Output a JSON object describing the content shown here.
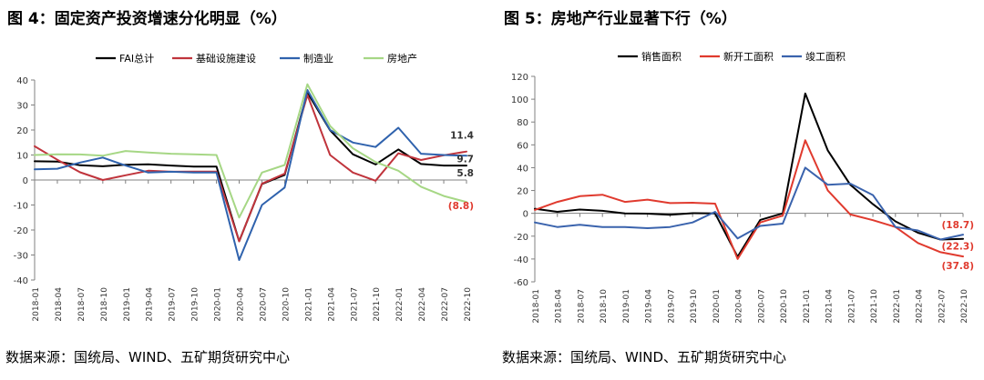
{
  "left": {
    "title": "图 4：固定资产投资增速分化明显（%）",
    "source": "数据来源：国统局、WIND、五矿期货研究中心"
  },
  "right": {
    "title": "图 5：房地产行业显著下行（%）",
    "source": "数据来源：国统局、WIND、五矿期货研究中心"
  },
  "chart_data": [
    {
      "type": "line",
      "title": "图 4：固定资产投资增速分化明显（%）",
      "x": [
        "2018-01",
        "2018-04",
        "2018-07",
        "2018-10",
        "2019-01",
        "2019-04",
        "2019-07",
        "2019-10",
        "2020-01",
        "2020-04",
        "2020-07",
        "2020-10",
        "2021-01",
        "2021-04",
        "2021-07",
        "2021-10",
        "2022-01",
        "2022-04",
        "2022-07",
        "2022-10"
      ],
      "ylim": [
        -40,
        40
      ],
      "yticks": [
        -40,
        -30,
        -20,
        -10,
        0,
        10,
        20,
        30,
        40
      ],
      "grid": false,
      "legend_position": "top",
      "series": [
        {
          "name": "FAI总计",
          "color": "#000000",
          "values": [
            7.5,
            7.4,
            5.9,
            5.5,
            6.1,
            6.3,
            5.8,
            5.4,
            5.4,
            -24.5,
            -1.6,
            2.0,
            35.0,
            19.9,
            10.3,
            6.2,
            12.2,
            6.4,
            5.8,
            5.8
          ]
        },
        {
          "name": "基础设施建设",
          "color": "#c0343c",
          "values": [
            13.5,
            8.1,
            3.1,
            0.0,
            1.9,
            3.7,
            3.3,
            3.4,
            3.4,
            -24.5,
            -1.5,
            2.5,
            34.0,
            10.0,
            3.0,
            -0.3,
            10.7,
            8.0,
            9.9,
            11.4
          ]
        },
        {
          "name": "制造业",
          "color": "#2f62ad",
          "values": [
            4.3,
            4.5,
            7.0,
            9.0,
            5.8,
            3.0,
            3.3,
            3.0,
            3.0,
            -32.0,
            -10.0,
            -3.0,
            36.0,
            20.0,
            15.0,
            13.2,
            20.9,
            10.5,
            10.0,
            9.7
          ]
        },
        {
          "name": "房地产",
          "color": "#a6d785",
          "values": [
            10.0,
            10.3,
            10.2,
            9.7,
            11.6,
            11.0,
            10.5,
            10.3,
            10.0,
            -15.0,
            3.0,
            6.0,
            38.3,
            21.6,
            12.7,
            7.2,
            3.7,
            -2.7,
            -6.4,
            -8.8
          ]
        }
      ],
      "end_labels": [
        {
          "text": "11.4",
          "color": "#333333"
        },
        {
          "text": "9.7",
          "color": "#333333"
        },
        {
          "text": "5.8",
          "color": "#333333"
        },
        {
          "text": "(8.8)",
          "color": "#e03a2e"
        }
      ]
    },
    {
      "type": "line",
      "title": "图 5：房地产行业显著下行（%）",
      "x": [
        "2018-01",
        "2018-04",
        "2018-07",
        "2018-10",
        "2019-01",
        "2019-04",
        "2019-07",
        "2019-10",
        "2020-01",
        "2020-04",
        "2020-07",
        "2020-10",
        "2021-01",
        "2021-04",
        "2021-07",
        "2021-10",
        "2022-01",
        "2022-04",
        "2022-07",
        "2022-10"
      ],
      "ylim": [
        -60,
        120
      ],
      "yticks": [
        -60,
        -40,
        -20,
        0,
        20,
        40,
        60,
        80,
        100,
        120
      ],
      "grid": false,
      "legend_position": "top",
      "series": [
        {
          "name": "销售面积",
          "color": "#000000",
          "values": [
            4.0,
            1.3,
            3.3,
            2.2,
            0.0,
            -0.3,
            -1.3,
            0.1,
            -0.1,
            -38.0,
            -5.8,
            0.0,
            105.0,
            55.0,
            25.0,
            8.0,
            -7.0,
            -17.0,
            -23.0,
            -22.3
          ]
        },
        {
          "name": "新开工面积",
          "color": "#e03a2e",
          "values": [
            3.0,
            10.0,
            15.0,
            16.3,
            10.0,
            12.0,
            9.0,
            9.3,
            8.5,
            -40.0,
            -8.0,
            -2.0,
            64.0,
            20.0,
            -1.0,
            -6.0,
            -12.0,
            -26.0,
            -34.0,
            -37.8
          ]
        },
        {
          "name": "竣工面积",
          "color": "#3a63ad",
          "values": [
            -8.0,
            -12.0,
            -10.0,
            -12.0,
            -12.0,
            -13.0,
            -12.0,
            -8.0,
            1.3,
            -22.0,
            -11.0,
            -9.0,
            40.0,
            25.0,
            26.0,
            16.0,
            -12.0,
            -15.0,
            -23.0,
            -18.7
          ]
        }
      ],
      "end_labels": [
        {
          "text": "(18.7)",
          "color": "#e03a2e"
        },
        {
          "text": "(22.3)",
          "color": "#e03a2e"
        },
        {
          "text": "(37.8)",
          "color": "#e03a2e"
        }
      ]
    }
  ]
}
